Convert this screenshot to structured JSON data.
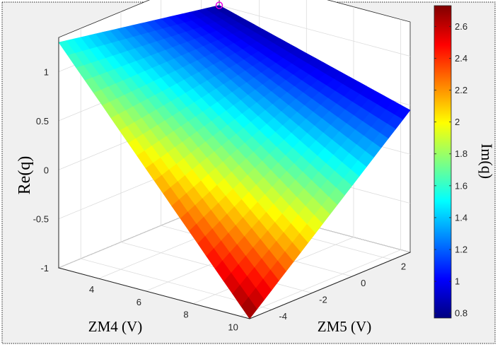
{
  "chart_data": {
    "type": "surface",
    "zlabel": "Re(q)",
    "xlabel": "ZM4 (V)",
    "ylabel": "ZM5 (V)",
    "colorbar_label": "Im(q)",
    "colormap": "jet",
    "grid": true,
    "xlim": [
      2.3,
      10.4
    ],
    "ylim": [
      -5.1,
      2.9
    ],
    "zlim": [
      -1,
      1.35
    ],
    "clim": [
      0.77,
      2.73
    ],
    "x_ticks": [
      "4",
      "6",
      "8",
      "10"
    ],
    "y_ticks": [
      "-4",
      "-2",
      "0",
      "2"
    ],
    "z_ticks": [
      "-1",
      "-0.5",
      "0",
      "0.5",
      "1"
    ],
    "colorbar_ticks": [
      "0.8",
      "1",
      "1.2",
      "1.4",
      "1.6",
      "1.8",
      "2",
      "2.2",
      "2.4",
      "2.6"
    ],
    "corners": [
      {
        "x": 2.3,
        "y": 2.9,
        "re": 1.0,
        "im": 0.82
      },
      {
        "x": 2.3,
        "y": -5.1,
        "re": 1.3,
        "im": 1.55
      },
      {
        "x": 10.4,
        "y": 2.9,
        "re": 0.45,
        "im": 1.0
      },
      {
        "x": 10.4,
        "y": -5.1,
        "re": -1.0,
        "im": 2.72
      }
    ],
    "marker": {
      "x": 2.3,
      "y": 2.9,
      "z": 1.0
    }
  }
}
